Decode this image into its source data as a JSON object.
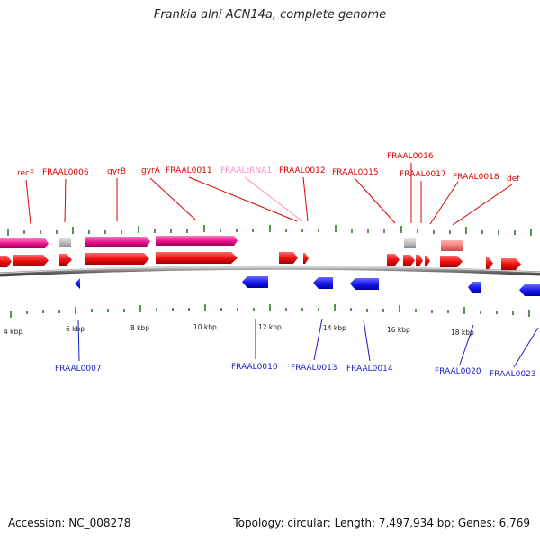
{
  "title": "Frankia alni ACN14a, complete genome",
  "footer": {
    "accession": "Accession: NC_008278",
    "topology": "Topology: circular; Length: 7,497,934 bp; Genes: 6,769"
  },
  "colors": {
    "forward_gene": "#ee1111",
    "reverse_gene": "#1a1aee",
    "rna_gene": "#e8108a",
    "rna_label": "#ff88cc",
    "pseudo_gene": "#bdbdbd",
    "other_gene": "#f08080",
    "tick": "#2a7a2a",
    "backbone": "#888888"
  },
  "kbp_labels": [
    "4 kbp",
    "6 kbp",
    "8 kbp",
    "10 kbp",
    "12 kbp",
    "14 kbp",
    "16 kbp",
    "18 kbp"
  ],
  "top_labels": [
    {
      "text": "recF",
      "color": "#dd0000"
    },
    {
      "text": "FRAAL0006",
      "color": "#dd0000"
    },
    {
      "text": "gyrB",
      "color": "#dd0000"
    },
    {
      "text": "gyrA",
      "color": "#dd0000"
    },
    {
      "text": "FRAAL0011",
      "color": "#dd0000"
    },
    {
      "text": "FRAALtRNA1",
      "color": "#ff88cc"
    },
    {
      "text": "FRAAL0012",
      "color": "#dd0000"
    },
    {
      "text": "FRAAL0015",
      "color": "#dd0000"
    },
    {
      "text": "FRAAL0016",
      "color": "#dd0000"
    },
    {
      "text": "FRAAL0017",
      "color": "#dd0000"
    },
    {
      "text": "FRAAL0018",
      "color": "#dd0000"
    },
    {
      "text": "def",
      "color": "#dd0000"
    }
  ],
  "bottom_labels": [
    {
      "text": "FRAAL0007"
    },
    {
      "text": "FRAAL0010"
    },
    {
      "text": "FRAAL0013"
    },
    {
      "text": "FRAAL0014"
    },
    {
      "text": "FRAAL0020"
    },
    {
      "text": "FRAAL0023"
    }
  ]
}
